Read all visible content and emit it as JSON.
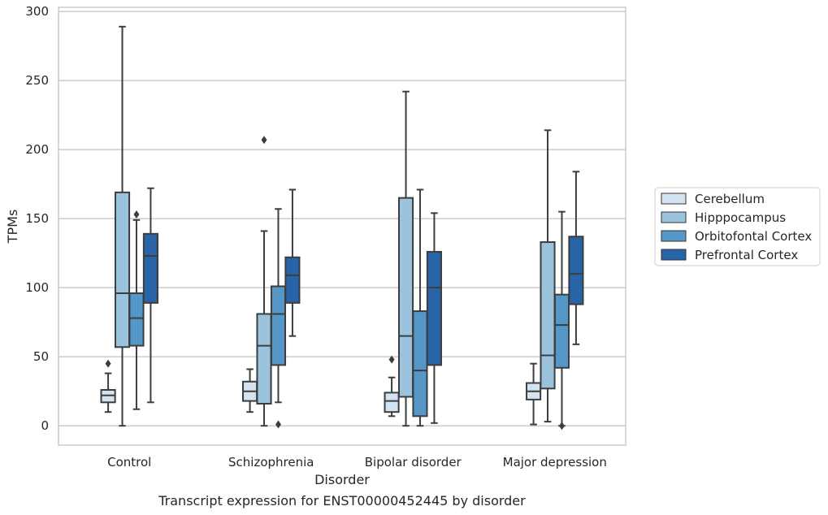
{
  "chart_data": {
    "type": "box",
    "title": "",
    "caption": "Transcript expression for ENST00000452445 by disorder",
    "xlabel": "Disorder",
    "ylabel": "TPMs",
    "ylim": [
      -14,
      303
    ],
    "yticks": [
      0,
      50,
      100,
      150,
      200,
      250,
      300
    ],
    "grid": "y",
    "legend_position": "right",
    "categories": [
      "Control",
      "Schizophrenia",
      "Bipolar disorder",
      "Major depression"
    ],
    "series": [
      {
        "name": "Cerebellum",
        "color": "#d4e3f2",
        "boxes": [
          {
            "min": 10,
            "q1": 17,
            "median": 22,
            "q3": 26,
            "max": 38,
            "outliers": [
              45
            ]
          },
          {
            "min": 10,
            "q1": 18,
            "median": 25,
            "q3": 32,
            "max": 41,
            "outliers": []
          },
          {
            "min": 7,
            "q1": 10,
            "median": 18,
            "q3": 24,
            "max": 35,
            "outliers": [
              48
            ]
          },
          {
            "min": 1,
            "q1": 19,
            "median": 25,
            "q3": 31,
            "max": 45,
            "outliers": []
          }
        ]
      },
      {
        "name": "Hipppocampus",
        "color": "#9bc3dd",
        "boxes": [
          {
            "min": 0,
            "q1": 57,
            "median": 96,
            "q3": 169,
            "max": 289,
            "outliers": []
          },
          {
            "min": 0,
            "q1": 16,
            "median": 58,
            "q3": 81,
            "max": 141,
            "outliers": [
              207
            ]
          },
          {
            "min": 0,
            "q1": 21,
            "median": 65,
            "q3": 165,
            "max": 242,
            "outliers": []
          },
          {
            "min": 3,
            "q1": 27,
            "median": 51,
            "q3": 133,
            "max": 214,
            "outliers": []
          }
        ]
      },
      {
        "name": "Orbitofontal Cortex",
        "color": "#5598c8",
        "boxes": [
          {
            "min": 12,
            "q1": 58,
            "median": 78,
            "q3": 96,
            "max": 149,
            "outliers": [
              153
            ]
          },
          {
            "min": 17,
            "q1": 44,
            "median": 81,
            "q3": 101,
            "max": 157,
            "outliers": [
              1
            ]
          },
          {
            "min": 0,
            "q1": 7,
            "median": 40,
            "q3": 83,
            "max": 171,
            "outliers": []
          },
          {
            "min": 0,
            "q1": 42,
            "median": 73,
            "q3": 95,
            "max": 155,
            "outliers": [
              0
            ]
          }
        ]
      },
      {
        "name": "Prefrontal Cortex",
        "color": "#2764a8",
        "boxes": [
          {
            "min": 17,
            "q1": 89,
            "median": 123,
            "q3": 139,
            "max": 172,
            "outliers": []
          },
          {
            "min": 65,
            "q1": 89,
            "median": 109,
            "q3": 122,
            "max": 171,
            "outliers": []
          },
          {
            "min": 2,
            "q1": 44,
            "median": 100,
            "q3": 126,
            "max": 154,
            "outliers": []
          },
          {
            "min": 59,
            "q1": 88,
            "median": 110,
            "q3": 137,
            "max": 184,
            "outliers": []
          }
        ]
      }
    ]
  }
}
